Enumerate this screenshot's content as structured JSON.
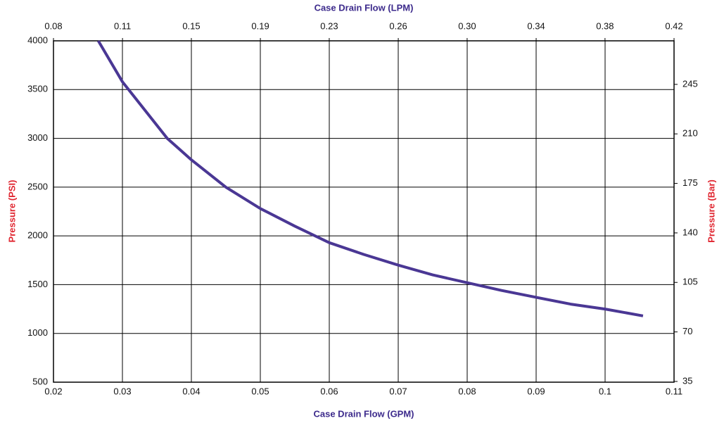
{
  "chart_data": {
    "type": "line",
    "title_top": "Case Drain Flow (LPM)",
    "x_label": "Case Drain Flow (GPM)",
    "y_label": "Pressure (PSI)",
    "y2_label": "Pressure (Bar)",
    "x": [
      0.0265,
      0.03,
      0.0365,
      0.04,
      0.045,
      0.05,
      0.055,
      0.06,
      0.065,
      0.07,
      0.075,
      0.08,
      0.085,
      0.09,
      0.095,
      0.1,
      0.1055
    ],
    "values": [
      4000,
      3580,
      3000,
      2780,
      2500,
      2280,
      2100,
      1930,
      1810,
      1700,
      1600,
      1520,
      1440,
      1370,
      1300,
      1250,
      1180
    ],
    "color": "#4a3794",
    "xlim": [
      0.02,
      0.11
    ],
    "xticks": [
      0.02,
      0.03,
      0.04,
      0.05,
      0.06,
      0.07,
      0.08,
      0.09,
      0.1,
      0.11
    ],
    "x2lim": [
      0.0757,
      0.4164
    ],
    "x2ticks": [
      {
        "value": 0.0757,
        "label": "0.08"
      },
      {
        "value": 0.1136,
        "label": "0.11"
      },
      {
        "value": 0.1514,
        "label": "0.15"
      },
      {
        "value": 0.1893,
        "label": "0.19"
      },
      {
        "value": 0.2271,
        "label": "0.23"
      },
      {
        "value": 0.265,
        "label": "0.26"
      },
      {
        "value": 0.3028,
        "label": "0.30"
      },
      {
        "value": 0.3407,
        "label": "0.34"
      },
      {
        "value": 0.3785,
        "label": "0.38"
      },
      {
        "value": 0.4164,
        "label": "0.42"
      }
    ],
    "ylim": [
      500,
      4000
    ],
    "yticks": [
      500,
      1000,
      1500,
      2000,
      2500,
      3000,
      3500,
      4000
    ],
    "y2lim": [
      34.47,
      275.79
    ],
    "y2ticks": [
      35,
      70,
      105,
      140,
      175,
      210,
      245
    ],
    "grid": true
  }
}
